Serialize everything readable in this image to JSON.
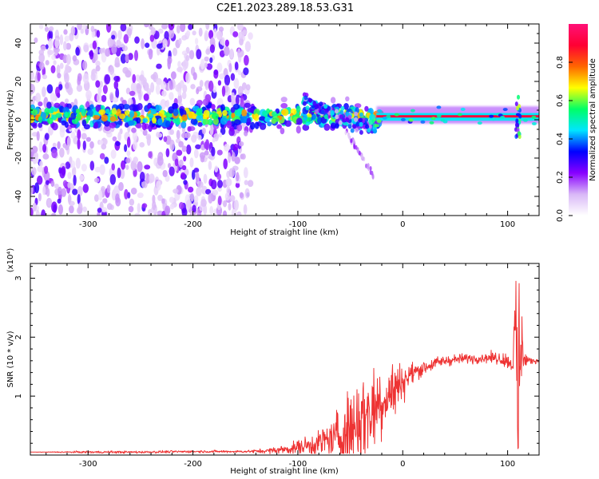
{
  "title": "C2E1.2023.289.18.53.G31",
  "chart_data": [
    {
      "type": "heatmap",
      "xlabel": "Height of straight line (km)",
      "ylabel": "Frequency (Hz)",
      "xlim": [
        -355,
        130
      ],
      "ylim": [
        -50,
        50
      ],
      "xticks": [
        -300,
        -200,
        -100,
        0,
        100
      ],
      "yticks": [
        -40,
        -20,
        0,
        20,
        40
      ],
      "colorbar": {
        "label": "Normalized spectral amplitude",
        "range": [
          0,
          1
        ],
        "ticks": [
          "0.0",
          "0.2",
          "0.4",
          "0.6",
          "0.8"
        ],
        "colors": [
          "#ffffff",
          "#d9b8f7",
          "#8800ff",
          "#0000ff",
          "#00e5ff",
          "#00ff66",
          "#ffff00",
          "#ff6600",
          "#ff0033",
          "#ff1177"
        ]
      },
      "features": [
        {
          "name": "diffuse broadband scatter",
          "x_range": [
            -355,
            -145
          ],
          "freq_range": [
            -50,
            50
          ],
          "amplitude": 0.05
        },
        {
          "name": "central band",
          "x_range": [
            -355,
            -20
          ],
          "freq_center": 2,
          "freq_halfwidth": 5,
          "amplitude": 0.5
        },
        {
          "name": "diagonal echo",
          "x_range": [
            -95,
            -25
          ],
          "freq_start": 10,
          "freq_end": -5,
          "amplitude": 0.4
        },
        {
          "name": "descending trace",
          "x_range": [
            -55,
            -27
          ],
          "freq_start": -5,
          "freq_end": -30,
          "amplitude": 0.15
        },
        {
          "name": "steady carrier",
          "x_range": [
            -25,
            130
          ],
          "freq_center": 1,
          "amplitude": 0.9
        },
        {
          "name": "spike",
          "x": 110,
          "freq_range": [
            -10,
            12
          ],
          "amplitude": 0.5
        }
      ]
    },
    {
      "type": "line",
      "xlabel": "Height of straight line (km)",
      "ylabel": "SNR (10 * v/v)",
      "y_multiplier": "(x10⁴)",
      "xlim": [
        -355,
        130
      ],
      "ylim": [
        0,
        3.25
      ],
      "xticks": [
        -300,
        -200,
        -100,
        0,
        100
      ],
      "yticks": [
        1,
        2,
        3
      ],
      "color": "#ee3333",
      "x": [
        -355,
        -300,
        -250,
        -200,
        -150,
        -130,
        -110,
        -100,
        -90,
        -80,
        -70,
        -60,
        -50,
        -40,
        -30,
        -20,
        -10,
        0,
        10,
        20,
        30,
        40,
        50,
        60,
        70,
        80,
        90,
        100,
        105,
        108,
        110,
        112,
        115,
        120,
        130
      ],
      "y": [
        0.05,
        0.05,
        0.05,
        0.06,
        0.06,
        0.07,
        0.1,
        0.13,
        0.16,
        0.2,
        0.26,
        0.32,
        0.45,
        0.6,
        0.75,
        0.95,
        1.08,
        1.25,
        1.4,
        1.48,
        1.55,
        1.6,
        1.62,
        1.64,
        1.64,
        1.65,
        1.65,
        1.6,
        1.55,
        2.2,
        0.3,
        2.6,
        1.6,
        1.6,
        1.6
      ],
      "noise": [
        0,
        0.01,
        0.01,
        0.01,
        0.01,
        0.02,
        0.04,
        0.06,
        0.08,
        0.12,
        0.18,
        0.26,
        0.36,
        0.4,
        0.35,
        0.35,
        0.25,
        0.15,
        0.08,
        0.06,
        0.05,
        0.05,
        0.04,
        0.04,
        0.04,
        0.04,
        0.05,
        0.06,
        0.1,
        0.6,
        0.8,
        0.9,
        0.15,
        0.03,
        0.02
      ]
    }
  ]
}
